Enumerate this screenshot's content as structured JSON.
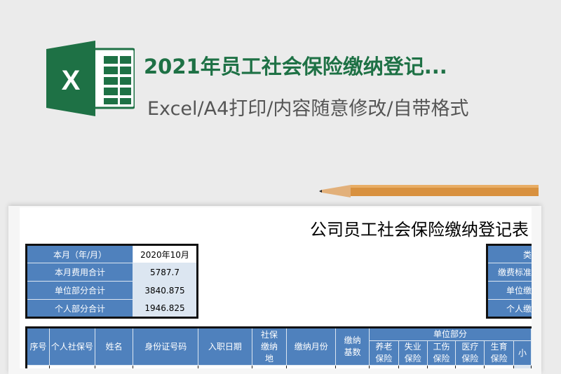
{
  "header": {
    "title": "2021年员工社会保险缴纳登记...",
    "subtitle": "Excel/A4打印/内容随意修改/自带格式",
    "brand_color": "#1e7145"
  },
  "sheet": {
    "title": "公司员工社会保险缴纳登记表",
    "summary": [
      {
        "label": "本月（年/月）",
        "value": "2020年10月"
      },
      {
        "label": "本月费用合计",
        "value": "5787.7"
      },
      {
        "label": "单位部分合计",
        "value": "3840.875"
      },
      {
        "label": "个人部分合计",
        "value": "1946.825"
      }
    ],
    "right_labels": [
      "类",
      "缴费标准",
      "单位缴",
      "个人缴"
    ],
    "columns": {
      "seq": "序号",
      "ssn": "个人社保号",
      "name": "姓名",
      "id": "身份证号码",
      "hire": "入职日期",
      "place": "社保缴纳地",
      "month": "缴纳月份",
      "base": "缴纳基数",
      "unit_group": "单位部分",
      "pension": "养老保险",
      "unemp": "失业保险",
      "injury": "工伤保险",
      "medical": "医疗保险",
      "maternity": "生育保险",
      "subtotal": "小"
    },
    "header_color": "#4f81bd"
  }
}
